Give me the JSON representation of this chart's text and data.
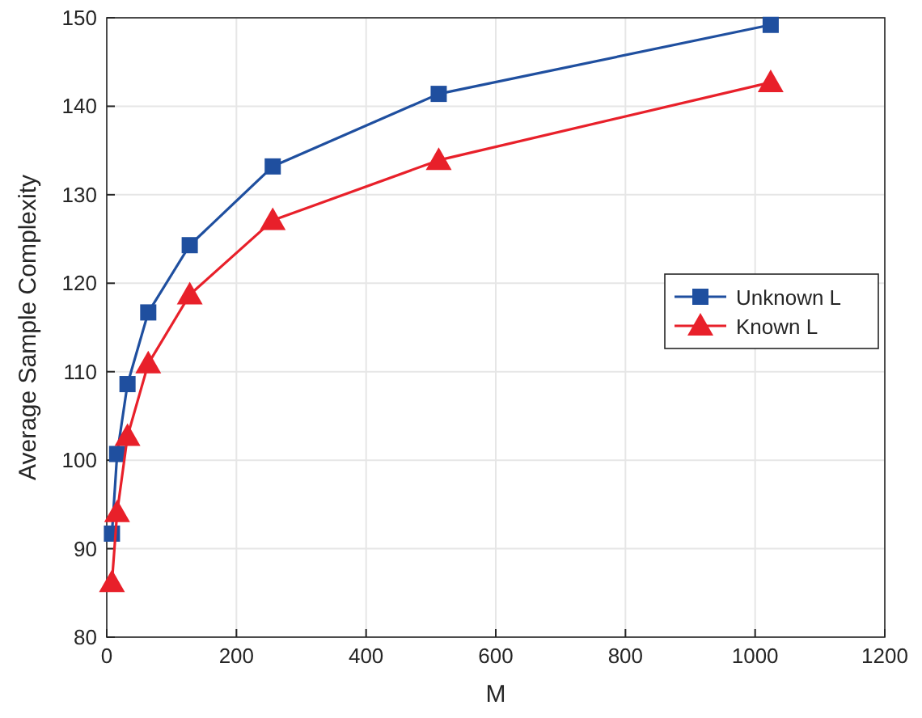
{
  "chart_data": {
    "type": "line",
    "xlabel": "M",
    "ylabel": "Average Sample Complexity",
    "x": [
      8,
      16,
      32,
      64,
      128,
      256,
      512,
      1024
    ],
    "series": [
      {
        "name": "Unknown L",
        "color": "#1f4f9f",
        "marker": "square",
        "values": [
          91.7,
          100.7,
          108.6,
          116.7,
          124.3,
          133.2,
          141.4,
          149.2
        ]
      },
      {
        "name": "Known L",
        "color": "#e8202a",
        "marker": "triangle",
        "values": [
          86.2,
          94.1,
          102.7,
          110.9,
          118.7,
          127.1,
          133.9,
          142.7
        ]
      }
    ],
    "xlim": [
      0,
      1200
    ],
    "xticks": [
      0,
      200,
      400,
      600,
      800,
      1000,
      1200
    ],
    "ylim": [
      80,
      150
    ],
    "yticks": [
      80,
      90,
      100,
      110,
      120,
      130,
      140,
      150
    ],
    "grid": true,
    "legend": "right",
    "line_style": "solid"
  }
}
